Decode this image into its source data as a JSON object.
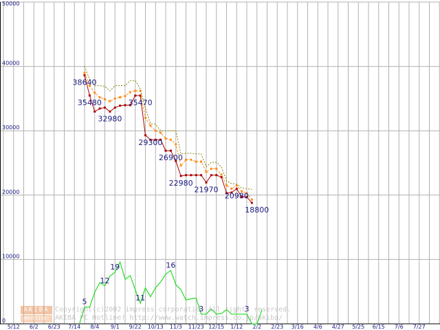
{
  "copyright": {
    "logo_top": "AKIBA",
    "logo_bottom": "@Hotline!",
    "line1": "Copyright(c)2002 impress corporation All rights reserved.",
    "line2": "AKIBA PC Hotline! http://www.watch.impress.co.jp/akiba/"
  },
  "chart_data": {
    "type": "line",
    "title": "",
    "xlabel": "",
    "ylabel": "",
    "ylim": [
      0,
      50000
    ],
    "yticks": [
      "0",
      "10000",
      "20000",
      "30000",
      "40000",
      "50000"
    ],
    "xticks": [
      "5/12",
      "6/2",
      "6/23",
      "7/14",
      "8/4",
      "9/1",
      "9/22",
      "10/13",
      "11/3",
      "11/23",
      "12/15",
      "1/12",
      "2/2",
      "2/23",
      "3/16",
      "4/6",
      "4/27",
      "5/25",
      "6/15",
      "7/6",
      "7/27"
    ],
    "grid": true,
    "colors": {
      "min": "#aa0000",
      "avg": "#ff8c1a",
      "max": "#808000",
      "count": "#22dd22",
      "grid": "#b0b0b0"
    },
    "series": [
      {
        "name": "",
        "key": "min",
        "style": "solid-markers",
        "points": [
          [
            8,
            38640
          ],
          [
            8.5,
            35480
          ],
          [
            9,
            32980
          ],
          [
            9.5,
            33450
          ],
          [
            10,
            33600
          ],
          [
            10.5,
            32980
          ],
          [
            11,
            33600
          ],
          [
            11.5,
            33900
          ],
          [
            12,
            33980
          ],
          [
            12.5,
            33980
          ],
          [
            13,
            35470
          ],
          [
            13.5,
            35470
          ],
          [
            14,
            29300
          ],
          [
            14.5,
            28600
          ],
          [
            15,
            28600
          ],
          [
            15.5,
            28600
          ],
          [
            16,
            26900
          ],
          [
            16.5,
            26900
          ],
          [
            17,
            25300
          ],
          [
            17.5,
            22980
          ],
          [
            18,
            23100
          ],
          [
            18.5,
            23100
          ],
          [
            19,
            23100
          ],
          [
            19.5,
            23100
          ],
          [
            20,
            21970
          ],
          [
            20.5,
            23100
          ],
          [
            21,
            23100
          ],
          [
            21.5,
            22800
          ],
          [
            22,
            20300
          ],
          [
            22.5,
            20400
          ],
          [
            23,
            20980
          ],
          [
            23.5,
            19700
          ],
          [
            24,
            19700
          ],
          [
            24.5,
            18800
          ]
        ]
      },
      {
        "name": "",
        "key": "avg",
        "style": "dashed-markers",
        "points": [
          [
            8,
            39000
          ],
          [
            8.5,
            37000
          ],
          [
            9,
            35900
          ],
          [
            9.5,
            35200
          ],
          [
            10,
            34900
          ],
          [
            10.5,
            34600
          ],
          [
            11,
            35000
          ],
          [
            11.5,
            35200
          ],
          [
            12,
            35400
          ],
          [
            12.5,
            36000
          ],
          [
            13,
            36200
          ],
          [
            13.5,
            36200
          ],
          [
            14,
            32000
          ],
          [
            14.5,
            30800
          ],
          [
            15,
            30000
          ],
          [
            15.5,
            29700
          ],
          [
            16,
            28800
          ],
          [
            16.5,
            28600
          ],
          [
            17,
            27900
          ],
          [
            17.5,
            24600
          ],
          [
            18,
            25500
          ],
          [
            18.5,
            25500
          ],
          [
            19,
            25200
          ],
          [
            19.5,
            25200
          ],
          [
            20,
            23600
          ],
          [
            20.5,
            24100
          ],
          [
            21,
            24100
          ],
          [
            21.5,
            23200
          ],
          [
            22,
            21500
          ],
          [
            22.5,
            21000
          ],
          [
            23,
            21500
          ],
          [
            23.5,
            20600
          ],
          [
            24,
            20300
          ],
          [
            24.5,
            19300
          ]
        ]
      },
      {
        "name": "",
        "key": "max",
        "style": "dotted",
        "points": [
          [
            8,
            40000
          ],
          [
            8.5,
            38000
          ],
          [
            9,
            37000
          ],
          [
            9.5,
            37000
          ],
          [
            10,
            36900
          ],
          [
            10.5,
            36200
          ],
          [
            11,
            37000
          ],
          [
            11.5,
            37000
          ],
          [
            12,
            37000
          ],
          [
            12.5,
            37800
          ],
          [
            13,
            37800
          ],
          [
            13.5,
            36500
          ],
          [
            14,
            33500
          ],
          [
            14.5,
            31100
          ],
          [
            15,
            31000
          ],
          [
            15.5,
            30000
          ],
          [
            16,
            30000
          ],
          [
            16.5,
            30000
          ],
          [
            17,
            30000
          ],
          [
            17.5,
            26400
          ],
          [
            18,
            26500
          ],
          [
            18.5,
            26500
          ],
          [
            19,
            26400
          ],
          [
            19.5,
            26400
          ],
          [
            20,
            24400
          ],
          [
            20.5,
            25100
          ],
          [
            21,
            25100
          ],
          [
            21.5,
            24400
          ],
          [
            22,
            22200
          ],
          [
            22.5,
            21800
          ],
          [
            23,
            21700
          ],
          [
            23.5,
            21100
          ],
          [
            24,
            21000
          ],
          [
            24.5,
            20900
          ]
        ]
      },
      {
        "name": "",
        "key": "count",
        "style": "solid",
        "points": [
          [
            7.5,
            0
          ],
          [
            8,
            2600
          ],
          [
            8.5,
            2600
          ],
          [
            9,
            4900
          ],
          [
            9.5,
            6400
          ],
          [
            10,
            5900
          ],
          [
            10.5,
            7400
          ],
          [
            11,
            8000
          ],
          [
            11.5,
            9600
          ],
          [
            12,
            6900
          ],
          [
            12.5,
            7500
          ],
          [
            13,
            5300
          ],
          [
            13.5,
            3200
          ],
          [
            14,
            5600
          ],
          [
            14.5,
            4200
          ],
          [
            15,
            5600
          ],
          [
            15.5,
            6500
          ],
          [
            16,
            7700
          ],
          [
            16.5,
            8300
          ],
          [
            17,
            6100
          ],
          [
            17.5,
            5300
          ],
          [
            18,
            3700
          ],
          [
            18.5,
            3900
          ],
          [
            19,
            4000
          ],
          [
            19.5,
            1500
          ],
          [
            20,
            1500
          ],
          [
            20.5,
            2300
          ],
          [
            21,
            1500
          ],
          [
            21.5,
            1600
          ],
          [
            22,
            2200
          ],
          [
            22.5,
            1500
          ],
          [
            23,
            1500
          ],
          [
            23.5,
            1500
          ],
          [
            24,
            1500
          ],
          [
            24.5,
            0
          ],
          [
            25,
            0
          ],
          [
            25.5,
            2200
          ]
        ]
      }
    ],
    "min_labels": [
      {
        "x": 8,
        "y": 38640,
        "text": "38640"
      },
      {
        "x": 8.5,
        "y": 35480,
        "text": "35480"
      },
      {
        "x": 10.5,
        "y": 32980,
        "text": "32980"
      },
      {
        "x": 13.5,
        "y": 35470,
        "text": "35470"
      },
      {
        "x": 14.5,
        "y": 29300,
        "text": "29300"
      },
      {
        "x": 16.5,
        "y": 26900,
        "text": "26900"
      },
      {
        "x": 17.5,
        "y": 22980,
        "text": "22980"
      },
      {
        "x": 20,
        "y": 21970,
        "text": "21970"
      },
      {
        "x": 23,
        "y": 20980,
        "text": "20980"
      },
      {
        "x": 25,
        "y": 18800,
        "text": "18800"
      }
    ],
    "count_labels": [
      {
        "x": 8,
        "y": 2600,
        "text": "5"
      },
      {
        "x": 10,
        "y": 5900,
        "text": "12"
      },
      {
        "x": 11,
        "y": 8000,
        "text": "19"
      },
      {
        "x": 13.5,
        "y": 3200,
        "text": "11"
      },
      {
        "x": 16.5,
        "y": 8300,
        "text": "16"
      },
      {
        "x": 19.5,
        "y": 1500,
        "text": "3"
      },
      {
        "x": 24,
        "y": 1500,
        "text": "3"
      }
    ]
  }
}
